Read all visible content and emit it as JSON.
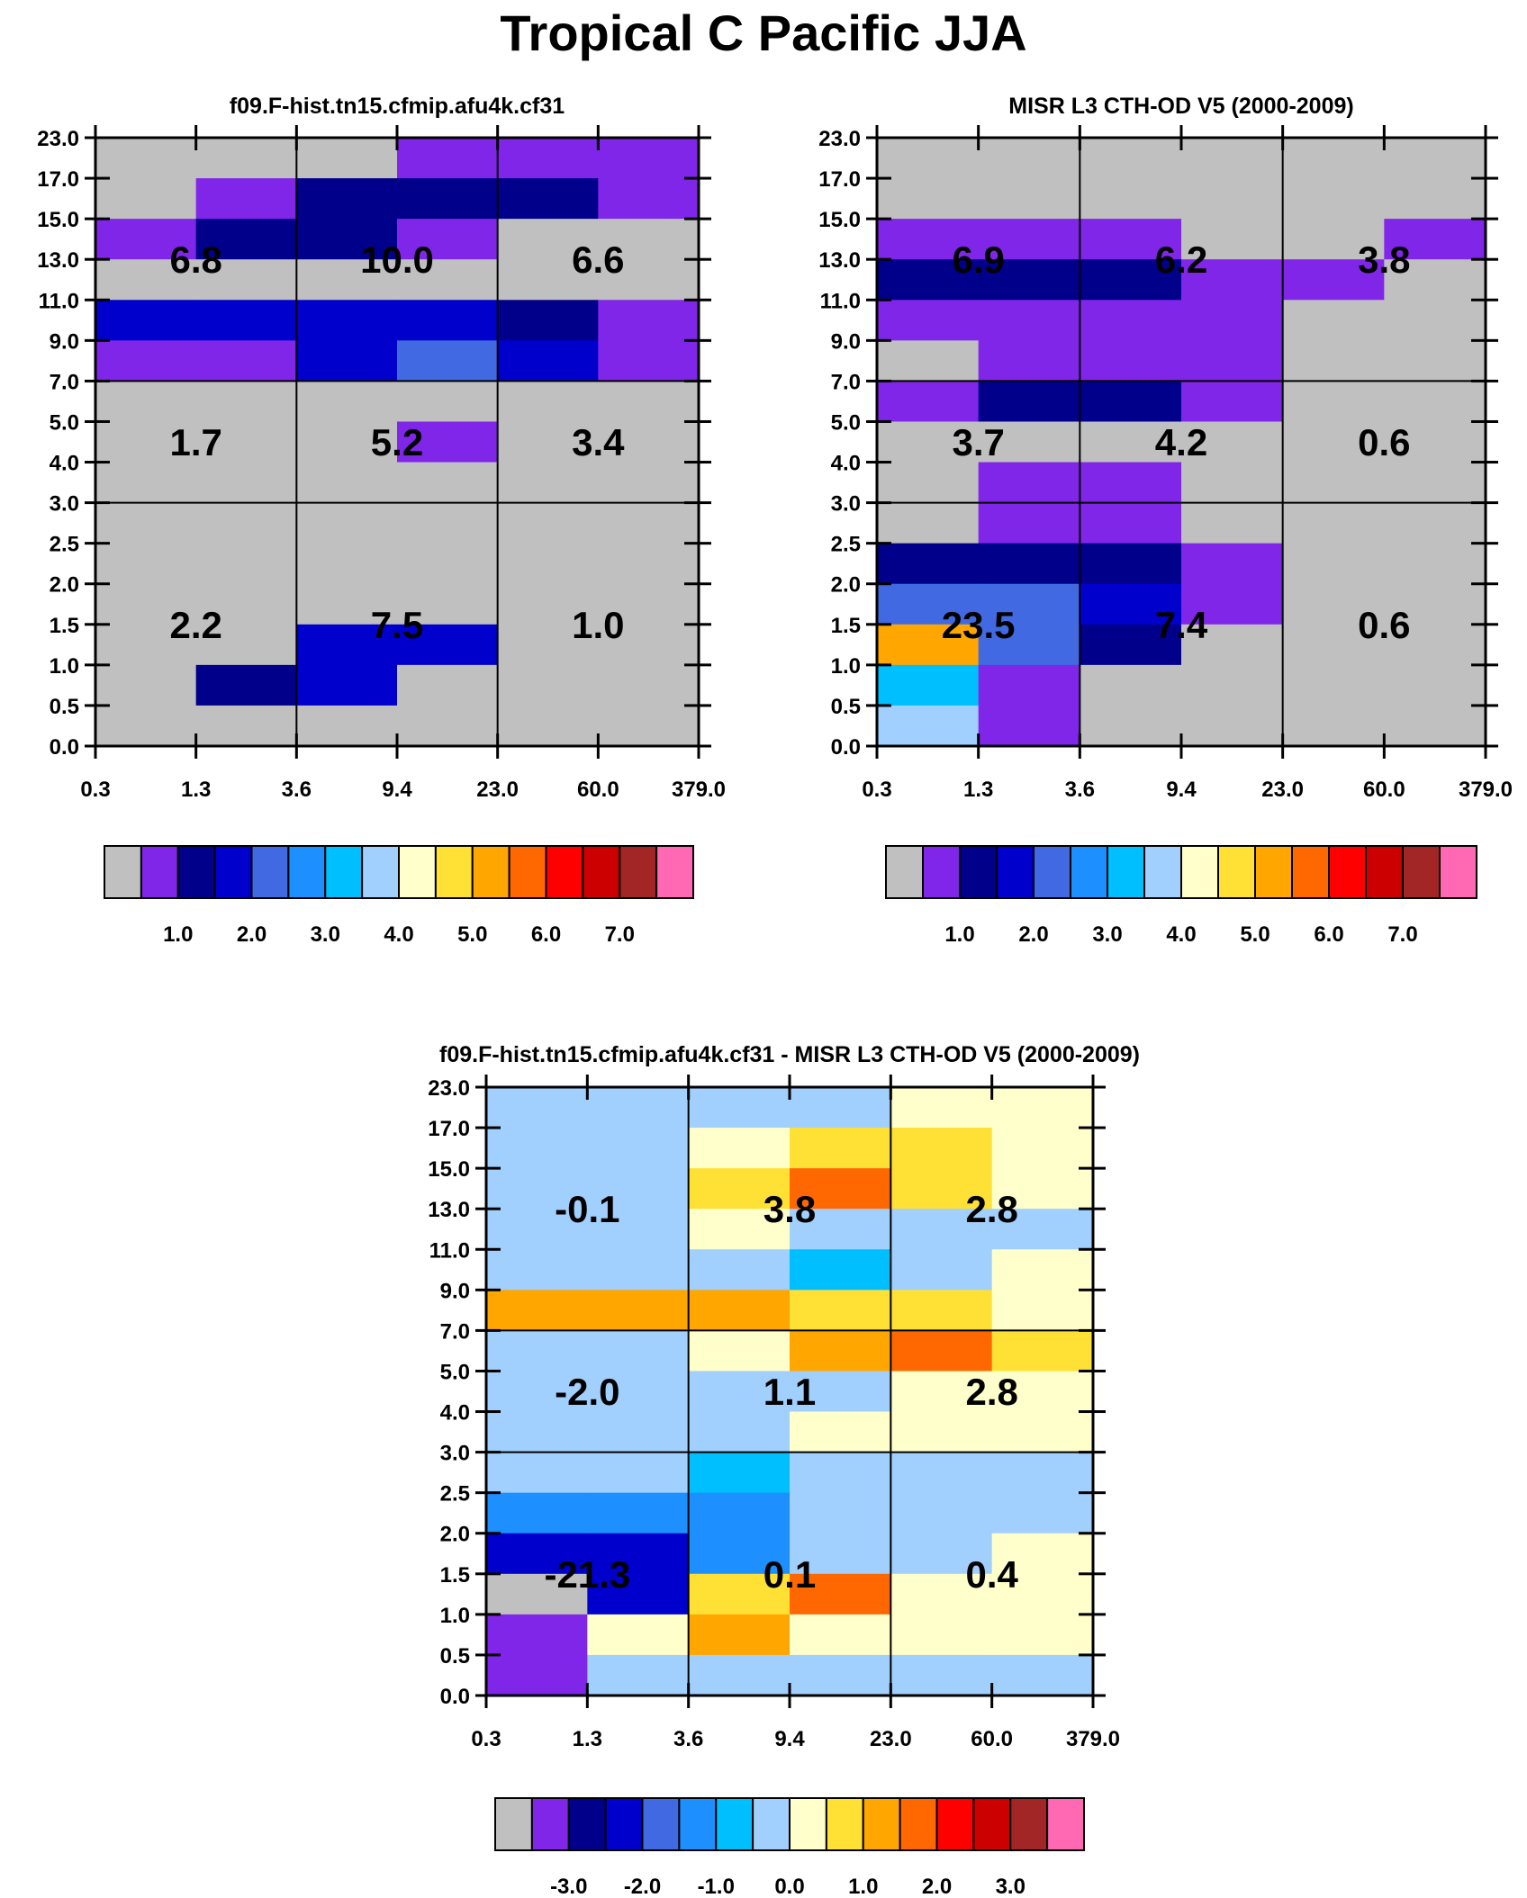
{
  "page_title": "Tropical C Pacific JJA",
  "colors": {
    "palette": [
      "#c0c0c0",
      "#8026e8",
      "#01008a",
      "#0000cd",
      "#416ae2",
      "#1e8fff",
      "#00bfff",
      "#a1cffe",
      "#ffffcc",
      "#ffe035",
      "#ffa700",
      "#ff6801",
      "#ff0000",
      "#cc0000",
      "#a32626",
      "#ff68b3"
    ],
    "axis": "#000000",
    "background": "#ffffff"
  },
  "chart_data": [
    {
      "type": "heatmap",
      "id": "model",
      "title": "f09.F-hist.tn15.cfmip.afu4k.cf31",
      "xlabel": "",
      "ylabel": "",
      "x_tick_labels": [
        "0.3",
        "1.3",
        "3.6",
        "9.4",
        "23.0",
        "60.0",
        "379.0"
      ],
      "y_tick_labels": [
        "0.0",
        "0.5",
        "1.0",
        "1.5",
        "2.0",
        "2.5",
        "3.0",
        "4.0",
        "5.0",
        "7.0",
        "9.0",
        "11.0",
        "13.0",
        "15.0",
        "17.0",
        "23.0"
      ],
      "cells_note": "rows listed top (23.0-17.0) to bottom (0.5-0.0); values are color-bin indices into palette",
      "cells": [
        [
          0,
          0,
          0,
          1,
          1,
          1
        ],
        [
          0,
          1,
          2,
          2,
          2,
          1
        ],
        [
          1,
          2,
          2,
          1,
          0,
          0
        ],
        [
          0,
          0,
          0,
          0,
          0,
          0
        ],
        [
          3,
          3,
          3,
          3,
          2,
          1
        ],
        [
          1,
          1,
          3,
          4,
          3,
          1
        ],
        [
          0,
          0,
          0,
          0,
          0,
          0
        ],
        [
          0,
          0,
          0,
          1,
          0,
          0
        ],
        [
          0,
          0,
          0,
          0,
          0,
          0
        ],
        [
          0,
          0,
          0,
          0,
          0,
          0
        ],
        [
          0,
          0,
          0,
          0,
          0,
          0
        ],
        [
          0,
          0,
          0,
          0,
          0,
          0
        ],
        [
          0,
          0,
          3,
          3,
          0,
          0
        ],
        [
          0,
          2,
          3,
          0,
          0,
          0
        ],
        [
          0,
          0,
          0,
          0,
          0,
          0
        ]
      ],
      "annotations": [
        {
          "value": "6.8",
          "x": "1.3",
          "y": "13.0"
        },
        {
          "value": "10.0",
          "x": "9.4",
          "y": "13.0"
        },
        {
          "value": "6.6",
          "x": "60.0",
          "y": "13.0"
        },
        {
          "value": "1.7",
          "x": "1.3",
          "y": "4.5"
        },
        {
          "value": "5.2",
          "x": "9.4",
          "y": "4.5"
        },
        {
          "value": "3.4",
          "x": "60.0",
          "y": "4.5"
        },
        {
          "value": "2.2",
          "x": "1.3",
          "y": "1.5"
        },
        {
          "value": "7.5",
          "x": "9.4",
          "y": "1.5"
        },
        {
          "value": "1.0",
          "x": "60.0",
          "y": "1.5"
        }
      ],
      "colorbar": {
        "labels": [
          "1.0",
          "2.0",
          "3.0",
          "4.0",
          "5.0",
          "6.0",
          "7.0"
        ]
      }
    },
    {
      "type": "heatmap",
      "id": "obs",
      "title": "MISR L3 CTH-OD V5 (2000-2009)",
      "xlabel": "",
      "ylabel": "",
      "x_tick_labels": [
        "0.3",
        "1.3",
        "3.6",
        "9.4",
        "23.0",
        "60.0",
        "379.0"
      ],
      "y_tick_labels": [
        "0.0",
        "0.5",
        "1.0",
        "1.5",
        "2.0",
        "2.5",
        "3.0",
        "4.0",
        "5.0",
        "7.0",
        "9.0",
        "11.0",
        "13.0",
        "15.0",
        "17.0",
        "23.0"
      ],
      "cells_note": "rows listed top (23.0-17.0) to bottom (0.5-0.0); values are color-bin indices into palette",
      "cells": [
        [
          0,
          0,
          0,
          0,
          0,
          0
        ],
        [
          0,
          0,
          0,
          0,
          0,
          0
        ],
        [
          1,
          1,
          1,
          0,
          0,
          1
        ],
        [
          2,
          2,
          2,
          1,
          1,
          0
        ],
        [
          1,
          1,
          1,
          1,
          0,
          0
        ],
        [
          0,
          1,
          1,
          1,
          0,
          0
        ],
        [
          1,
          2,
          2,
          1,
          0,
          0
        ],
        [
          0,
          0,
          0,
          0,
          0,
          0
        ],
        [
          0,
          1,
          1,
          0,
          0,
          0
        ],
        [
          0,
          1,
          1,
          0,
          0,
          0
        ],
        [
          2,
          2,
          2,
          1,
          0,
          0
        ],
        [
          4,
          4,
          3,
          1,
          0,
          0
        ],
        [
          10,
          4,
          2,
          0,
          0,
          0
        ],
        [
          6,
          1,
          0,
          0,
          0,
          0
        ],
        [
          7,
          1,
          0,
          0,
          0,
          0
        ]
      ],
      "annotations": [
        {
          "value": "6.9",
          "x": "1.3",
          "y": "13.0"
        },
        {
          "value": "6.2",
          "x": "9.4",
          "y": "13.0"
        },
        {
          "value": "3.8",
          "x": "60.0",
          "y": "13.0"
        },
        {
          "value": "3.7",
          "x": "1.3",
          "y": "4.5"
        },
        {
          "value": "4.2",
          "x": "9.4",
          "y": "4.5"
        },
        {
          "value": "0.6",
          "x": "60.0",
          "y": "4.5"
        },
        {
          "value": "23.5",
          "x": "1.3",
          "y": "1.5"
        },
        {
          "value": "7.4",
          "x": "9.4",
          "y": "1.5"
        },
        {
          "value": "0.6",
          "x": "60.0",
          "y": "1.5"
        }
      ],
      "colorbar": {
        "labels": [
          "1.0",
          "2.0",
          "3.0",
          "4.0",
          "5.0",
          "6.0",
          "7.0"
        ]
      }
    },
    {
      "type": "heatmap",
      "id": "diff",
      "title": "f09.F-hist.tn15.cfmip.afu4k.cf31 - MISR L3 CTH-OD V5 (2000-2009)",
      "xlabel": "",
      "ylabel": "",
      "x_tick_labels": [
        "0.3",
        "1.3",
        "3.6",
        "9.4",
        "23.0",
        "60.0",
        "379.0"
      ],
      "y_tick_labels": [
        "0.0",
        "0.5",
        "1.0",
        "1.5",
        "2.0",
        "2.5",
        "3.0",
        "4.0",
        "5.0",
        "7.0",
        "9.0",
        "11.0",
        "13.0",
        "15.0",
        "17.0",
        "23.0"
      ],
      "cells_note": "rows listed top (23.0-17.0) to bottom (0.5-0.0); values are color-bin indices into palette",
      "cells": [
        [
          7,
          7,
          7,
          7,
          8,
          8
        ],
        [
          7,
          7,
          8,
          9,
          9,
          8
        ],
        [
          7,
          7,
          9,
          11,
          9,
          8
        ],
        [
          7,
          7,
          8,
          7,
          7,
          7
        ],
        [
          7,
          7,
          7,
          6,
          7,
          8
        ],
        [
          10,
          10,
          10,
          9,
          9,
          8
        ],
        [
          7,
          7,
          8,
          10,
          11,
          9
        ],
        [
          7,
          7,
          7,
          7,
          8,
          8
        ],
        [
          7,
          7,
          7,
          8,
          8,
          8
        ],
        [
          7,
          7,
          6,
          7,
          7,
          7
        ],
        [
          5,
          5,
          5,
          7,
          7,
          7
        ],
        [
          3,
          3,
          5,
          7,
          7,
          8
        ],
        [
          0,
          3,
          9,
          11,
          8,
          8
        ],
        [
          1,
          8,
          10,
          8,
          8,
          8
        ],
        [
          1,
          7,
          7,
          7,
          7,
          7
        ]
      ],
      "annotations": [
        {
          "value": "-0.1",
          "x": "1.3",
          "y": "13.0"
        },
        {
          "value": "3.8",
          "x": "9.4",
          "y": "13.0"
        },
        {
          "value": "2.8",
          "x": "60.0",
          "y": "13.0"
        },
        {
          "value": "-2.0",
          "x": "1.3",
          "y": "4.5"
        },
        {
          "value": "1.1",
          "x": "9.4",
          "y": "4.5"
        },
        {
          "value": "2.8",
          "x": "60.0",
          "y": "4.5"
        },
        {
          "value": "-21.3",
          "x": "1.3",
          "y": "1.5"
        },
        {
          "value": "0.1",
          "x": "9.4",
          "y": "1.5"
        },
        {
          "value": "0.4",
          "x": "60.0",
          "y": "1.5"
        }
      ],
      "colorbar": {
        "labels": [
          "-3.0",
          "-2.0",
          "-1.0",
          "0.0",
          "1.0",
          "2.0",
          "3.0"
        ]
      }
    }
  ]
}
